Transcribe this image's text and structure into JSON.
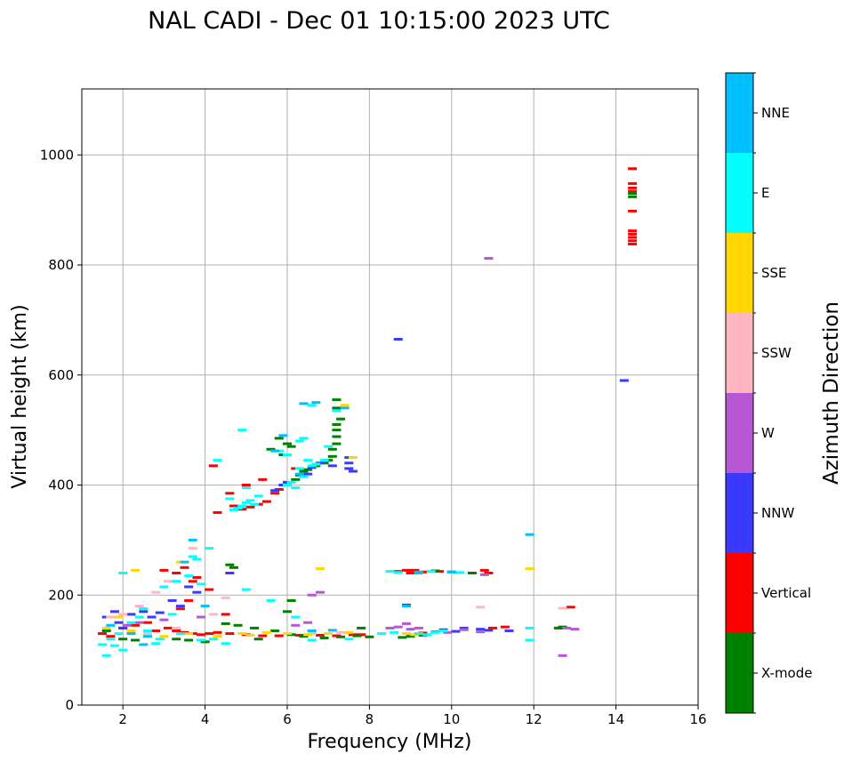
{
  "chart_data": {
    "type": "scatter",
    "title": "NAL CADI - Dec 01 10:15:00 2023 UTC",
    "xlabel": "Frequency (MHz)",
    "ylabel": "Virtual height (km)",
    "xlim": [
      1,
      16
    ],
    "ylim": [
      0,
      1120
    ],
    "xticks": [
      2,
      4,
      6,
      8,
      10,
      12,
      14,
      16
    ],
    "yticks": [
      0,
      200,
      400,
      600,
      800,
      1000
    ],
    "grid": true,
    "colorbar": {
      "title": "Azimuth Direction",
      "categories": [
        {
          "name": "X-mode",
          "color": "#008000"
        },
        {
          "name": "Vertical",
          "color": "#ff0000"
        },
        {
          "name": "NNW",
          "color": "#3a3aff"
        },
        {
          "name": "W",
          "color": "#b658d6"
        },
        {
          "name": "SSW",
          "color": "#ffb6c1"
        },
        {
          "name": "SSE",
          "color": "#ffd700"
        },
        {
          "name": "E",
          "color": "#00ffff"
        },
        {
          "name": "NNE",
          "color": "#00bfff"
        }
      ]
    },
    "series": [
      {
        "name": "Vertical",
        "points": [
          [
            14.4,
            975
          ],
          [
            14.4,
            948
          ],
          [
            14.4,
            940
          ],
          [
            14.4,
            934
          ],
          [
            14.4,
            898
          ],
          [
            14.4,
            862
          ],
          [
            14.4,
            856
          ],
          [
            14.4,
            850
          ],
          [
            14.4,
            844
          ],
          [
            14.4,
            838
          ],
          [
            8.9,
            245
          ],
          [
            9.0,
            240
          ],
          [
            9.1,
            245
          ],
          [
            9.3,
            242
          ],
          [
            9.7,
            243
          ],
          [
            10.8,
            245
          ],
          [
            10.9,
            240
          ],
          [
            8.7,
            243
          ],
          [
            4.6,
            385
          ],
          [
            4.7,
            362
          ],
          [
            4.9,
            356
          ],
          [
            5.1,
            360
          ],
          [
            5.3,
            365
          ],
          [
            5.5,
            370
          ],
          [
            5.7,
            385
          ],
          [
            5.8,
            392
          ],
          [
            5.9,
            400
          ],
          [
            6.2,
            430
          ],
          [
            4.2,
            435
          ],
          [
            4.3,
            350
          ],
          [
            5.0,
            400
          ],
          [
            5.4,
            410
          ],
          [
            3.0,
            245
          ],
          [
            3.3,
            240
          ],
          [
            3.5,
            250
          ],
          [
            3.7,
            225
          ],
          [
            3.8,
            232
          ],
          [
            4.1,
            210
          ],
          [
            3.6,
            190
          ],
          [
            3.4,
            175
          ],
          [
            4.5,
            165
          ],
          [
            3.1,
            140
          ],
          [
            3.3,
            135
          ],
          [
            3.5,
            132
          ],
          [
            3.7,
            130
          ],
          [
            3.9,
            128
          ],
          [
            4.1,
            130
          ],
          [
            4.3,
            132
          ],
          [
            4.6,
            130
          ],
          [
            5.0,
            128
          ],
          [
            5.4,
            126
          ],
          [
            5.8,
            126
          ],
          [
            6.3,
            127
          ],
          [
            6.8,
            127
          ],
          [
            7.2,
            126
          ],
          [
            7.6,
            128
          ],
          [
            1.5,
            130
          ],
          [
            1.7,
            125
          ],
          [
            2.0,
            140
          ],
          [
            2.3,
            145
          ],
          [
            2.6,
            150
          ],
          [
            2.8,
            135
          ],
          [
            12.9,
            178
          ],
          [
            12.6,
            140
          ],
          [
            11.3,
            142
          ],
          [
            11.0,
            140
          ],
          [
            9.3,
            131
          ],
          [
            7.8,
            128
          ]
        ]
      },
      {
        "name": "X-mode",
        "points": [
          [
            14.4,
            930
          ],
          [
            14.4,
            924
          ],
          [
            7.1,
            465
          ],
          [
            7.2,
            475
          ],
          [
            7.2,
            488
          ],
          [
            7.1,
            452
          ],
          [
            7.0,
            445
          ],
          [
            7.2,
            500
          ],
          [
            6.9,
            440
          ],
          [
            6.7,
            435
          ],
          [
            6.5,
            428
          ],
          [
            6.2,
            410
          ],
          [
            6.3,
            418
          ],
          [
            6.4,
            425
          ],
          [
            7.2,
            555
          ],
          [
            7.2,
            540
          ],
          [
            7.3,
            520
          ],
          [
            7.2,
            510
          ],
          [
            5.8,
            485
          ],
          [
            5.6,
            465
          ],
          [
            6.0,
            475
          ],
          [
            6.1,
            470
          ],
          [
            5.9,
            455
          ],
          [
            9.6,
            244
          ],
          [
            10.0,
            242
          ],
          [
            10.5,
            240
          ],
          [
            12.6,
            140
          ],
          [
            12.7,
            142
          ],
          [
            8.8,
            123
          ],
          [
            9.0,
            125
          ],
          [
            9.3,
            127
          ],
          [
            6.0,
            170
          ],
          [
            6.1,
            190
          ],
          [
            4.6,
            255
          ],
          [
            4.7,
            250
          ],
          [
            4.5,
            148
          ],
          [
            4.8,
            145
          ],
          [
            5.2,
            140
          ],
          [
            5.7,
            135
          ],
          [
            6.4,
            125
          ],
          [
            6.9,
            122
          ],
          [
            7.3,
            124
          ],
          [
            7.7,
            126
          ],
          [
            8.0,
            124
          ],
          [
            3.3,
            120
          ],
          [
            3.6,
            118
          ],
          [
            4.0,
            115
          ],
          [
            1.6,
            135
          ],
          [
            2.0,
            120
          ],
          [
            2.3,
            118
          ],
          [
            5.3,
            120
          ],
          [
            6.1,
            128
          ],
          [
            7.8,
            140
          ]
        ]
      },
      {
        "name": "NNW",
        "points": [
          [
            14.2,
            590
          ],
          [
            8.7,
            665
          ],
          [
            7.5,
            450
          ],
          [
            7.5,
            440
          ],
          [
            7.5,
            430
          ],
          [
            7.6,
            425
          ],
          [
            7.1,
            435
          ],
          [
            6.6,
            432
          ],
          [
            6.8,
            440
          ],
          [
            6.5,
            420
          ],
          [
            5.7,
            390
          ],
          [
            5.9,
            400
          ],
          [
            6.0,
            405
          ],
          [
            9.6,
            133
          ],
          [
            10.1,
            134
          ],
          [
            10.3,
            140
          ],
          [
            10.7,
            138
          ],
          [
            10.9,
            136
          ],
          [
            11.4,
            135
          ],
          [
            9.8,
            137
          ],
          [
            8.9,
            182
          ],
          [
            4.6,
            240
          ],
          [
            3.8,
            205
          ],
          [
            3.6,
            215
          ],
          [
            2.9,
            168
          ],
          [
            2.7,
            160
          ],
          [
            2.5,
            170
          ],
          [
            2.2,
            165
          ],
          [
            1.9,
            150
          ],
          [
            1.6,
            160
          ],
          [
            1.8,
            170
          ],
          [
            2.0,
            140
          ],
          [
            3.4,
            180
          ],
          [
            3.2,
            190
          ]
        ]
      },
      {
        "name": "W",
        "points": [
          [
            10.9,
            812
          ],
          [
            12.7,
            90
          ],
          [
            8.9,
            148
          ],
          [
            8.7,
            142
          ],
          [
            9.0,
            138
          ],
          [
            9.2,
            140
          ],
          [
            8.5,
            140
          ],
          [
            9.9,
            132
          ],
          [
            10.3,
            137
          ],
          [
            10.7,
            133
          ],
          [
            12.8,
            140
          ],
          [
            13.0,
            138
          ],
          [
            6.6,
            200
          ],
          [
            6.8,
            205
          ],
          [
            6.5,
            150
          ],
          [
            6.2,
            145
          ],
          [
            2.1,
            145
          ],
          [
            2.4,
            150
          ],
          [
            3.0,
            155
          ],
          [
            3.9,
            160
          ],
          [
            10.8,
            237
          ]
        ]
      },
      {
        "name": "SSW",
        "points": [
          [
            12.7,
            176
          ],
          [
            3.7,
            285
          ],
          [
            4.2,
            165
          ],
          [
            4.5,
            195
          ],
          [
            3.1,
            225
          ],
          [
            2.8,
            205
          ],
          [
            2.4,
            180
          ],
          [
            2.0,
            165
          ],
          [
            1.7,
            160
          ],
          [
            10.7,
            178
          ],
          [
            6.6,
            130
          ],
          [
            7.3,
            132
          ],
          [
            3.3,
            140
          ],
          [
            2.6,
            130
          ]
        ]
      },
      {
        "name": "SSE",
        "points": [
          [
            11.9,
            248
          ],
          [
            7.4,
            545
          ],
          [
            6.8,
            248
          ],
          [
            7.6,
            450
          ],
          [
            3.4,
            260
          ],
          [
            2.3,
            245
          ],
          [
            4.9,
            130
          ],
          [
            5.1,
            127
          ],
          [
            5.5,
            132
          ],
          [
            6.0,
            130
          ],
          [
            6.5,
            128
          ],
          [
            7.0,
            130
          ],
          [
            7.5,
            132
          ],
          [
            1.6,
            140
          ],
          [
            2.2,
            135
          ],
          [
            3.0,
            125
          ],
          [
            3.6,
            130
          ],
          [
            8.9,
            130
          ],
          [
            9.1,
            128
          ],
          [
            4.3,
            125
          ],
          [
            1.9,
            160
          ],
          [
            2.5,
            175
          ]
        ]
      },
      {
        "name": "E",
        "points": [
          [
            11.9,
            140
          ],
          [
            11.9,
            118
          ],
          [
            5.2,
            365
          ],
          [
            5.1,
            372
          ],
          [
            5.0,
            368
          ],
          [
            4.9,
            362
          ],
          [
            4.8,
            358
          ],
          [
            4.7,
            355
          ],
          [
            5.3,
            380
          ],
          [
            6.3,
            430
          ],
          [
            6.5,
            445
          ],
          [
            6.6,
            435
          ],
          [
            6.7,
            438
          ],
          [
            6.9,
            445
          ],
          [
            6.4,
            415
          ],
          [
            6.1,
            405
          ],
          [
            6.0,
            400
          ],
          [
            6.2,
            395
          ],
          [
            6.6,
            545
          ],
          [
            6.4,
            485
          ],
          [
            6.3,
            480
          ],
          [
            6.0,
            455
          ],
          [
            5.8,
            462
          ],
          [
            7.2,
            535
          ],
          [
            7.0,
            470
          ],
          [
            4.3,
            445
          ],
          [
            4.6,
            375
          ],
          [
            4.9,
            500
          ],
          [
            5.0,
            395
          ],
          [
            8.5,
            243
          ],
          [
            8.7,
            241
          ],
          [
            9.2,
            241
          ],
          [
            9.5,
            243
          ],
          [
            10.2,
            241
          ],
          [
            4.1,
            285
          ],
          [
            3.8,
            265
          ],
          [
            3.7,
            270
          ],
          [
            3.9,
            220
          ],
          [
            3.6,
            235
          ],
          [
            3.3,
            225
          ],
          [
            3.0,
            215
          ],
          [
            2.5,
            175
          ],
          [
            2.4,
            160
          ],
          [
            2.2,
            150
          ],
          [
            1.9,
            130
          ],
          [
            1.7,
            120
          ],
          [
            1.5,
            110
          ],
          [
            2.6,
            135
          ],
          [
            2.9,
            120
          ],
          [
            3.4,
            130
          ],
          [
            3.9,
            118
          ],
          [
            4.2,
            120
          ],
          [
            4.5,
            112
          ],
          [
            8.3,
            130
          ],
          [
            8.6,
            132
          ],
          [
            9.2,
            130
          ],
          [
            9.4,
            128
          ],
          [
            9.6,
            132
          ],
          [
            9.8,
            135
          ],
          [
            6.6,
            118
          ],
          [
            7.5,
            120
          ],
          [
            2.0,
            100
          ],
          [
            1.6,
            90
          ],
          [
            1.8,
            108
          ],
          [
            2.8,
            112
          ],
          [
            5.0,
            210
          ],
          [
            5.6,
            190
          ],
          [
            6.2,
            160
          ],
          [
            3.2,
            165
          ],
          [
            2.0,
            240
          ]
        ]
      },
      {
        "name": "NNE",
        "points": [
          [
            11.9,
            310
          ],
          [
            3.7,
            300
          ],
          [
            8.9,
            180
          ],
          [
            9.2,
            240
          ],
          [
            6.6,
            135
          ],
          [
            7.1,
            136
          ],
          [
            4.0,
            180
          ],
          [
            2.2,
            130
          ],
          [
            2.6,
            125
          ],
          [
            1.7,
            145
          ],
          [
            6.4,
            548
          ],
          [
            6.7,
            550
          ],
          [
            5.9,
            490
          ],
          [
            5.7,
            462
          ],
          [
            7.4,
            540
          ],
          [
            10.0,
            242
          ],
          [
            2.5,
            110
          ],
          [
            3.5,
            260
          ],
          [
            6.3,
            420
          ]
        ]
      }
    ]
  }
}
